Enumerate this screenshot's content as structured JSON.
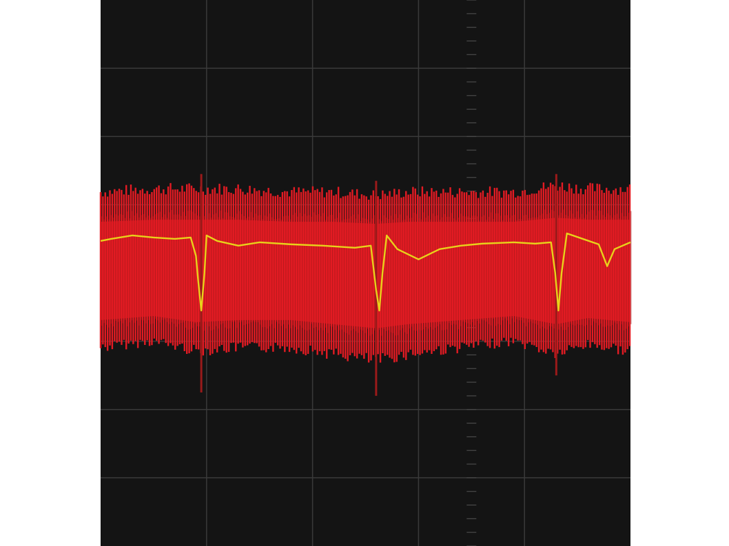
{
  "colors": {
    "page_background": "#ffffff",
    "screen_background": "#141414",
    "grid": "#3a3a3a",
    "center_axis_ticks": "#4a4a4a",
    "envelope_fill": "#e31b23",
    "envelope_lines": "#9a1a1a",
    "signal_line": "#e8d21a"
  },
  "chart_data": {
    "type": "line",
    "title": "",
    "xlabel": "",
    "ylabel": "",
    "grid": true,
    "legend": "none",
    "x_divisions": 5,
    "y_divisions": 8,
    "xlim": [
      0,
      5
    ],
    "ylim": [
      -4,
      4
    ],
    "series": [
      {
        "kind": "envelope",
        "color": "#e31b23",
        "x": [
          0,
          0.5,
          0.9,
          1.3,
          1.8,
          2.2,
          2.6,
          2.9,
          3.4,
          3.9,
          4.3,
          4.6,
          5.0
        ],
        "y_upper": [
          1.25,
          1.3,
          1.3,
          1.3,
          1.25,
          1.25,
          1.2,
          1.25,
          1.25,
          1.25,
          1.35,
          1.3,
          1.3
        ],
        "y_lower": [
          -1.15,
          -1.05,
          -1.2,
          -1.15,
          -1.15,
          -1.25,
          -1.35,
          -1.25,
          -1.15,
          -1.05,
          -1.25,
          -1.1,
          -1.2
        ],
        "spikes": [
          {
            "x": 0.95,
            "y_upper": 1.45,
            "y_lower": -1.75
          },
          {
            "x": 2.6,
            "y_upper": 1.35,
            "y_lower": -1.8
          },
          {
            "x": 4.3,
            "y_upper": 1.45,
            "y_lower": -1.5
          }
        ]
      },
      {
        "kind": "trace",
        "color": "#e8d21a",
        "x": [
          0,
          0.1,
          0.3,
          0.5,
          0.7,
          0.85,
          0.9,
          0.92,
          0.95,
          0.98,
          1.0,
          1.1,
          1.3,
          1.5,
          1.8,
          2.1,
          2.4,
          2.55,
          2.6,
          2.63,
          2.66,
          2.7,
          2.8,
          3.0,
          3.2,
          3.4,
          3.6,
          3.9,
          4.1,
          4.25,
          4.29,
          4.32,
          4.35,
          4.4,
          4.55,
          4.7,
          4.78,
          4.85,
          5.0
        ],
        "y": [
          0.47,
          0.5,
          0.55,
          0.52,
          0.5,
          0.52,
          0.25,
          -0.1,
          -0.55,
          0.0,
          0.55,
          0.47,
          0.4,
          0.45,
          0.42,
          0.4,
          0.37,
          0.4,
          -0.25,
          -0.55,
          0.0,
          0.55,
          0.35,
          0.2,
          0.35,
          0.4,
          0.43,
          0.45,
          0.43,
          0.45,
          0.0,
          -0.55,
          0.0,
          0.58,
          0.5,
          0.42,
          0.1,
          0.35,
          0.45
        ]
      }
    ]
  }
}
